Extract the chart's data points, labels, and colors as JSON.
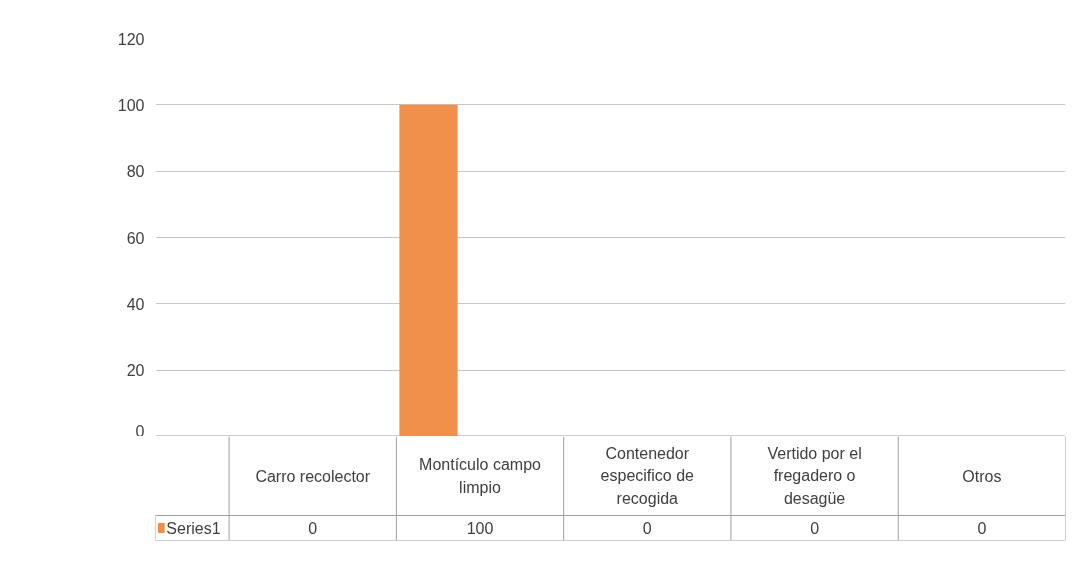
{
  "chart_data": {
    "type": "bar",
    "categories": [
      "Carro recolector",
      "Montículo campo limpio",
      "Contenedor especifico de recogida",
      "Vertido por el fregadero o desagüe",
      "Otros"
    ],
    "series": [
      {
        "name": "Series1",
        "color": "#f0904a",
        "values": [
          0,
          100,
          0,
          0,
          0
        ]
      }
    ],
    "ylim": [
      0,
      120
    ],
    "yticks": [
      0,
      20,
      40,
      60,
      80,
      100,
      120
    ],
    "grid": "y",
    "legend": "bottom",
    "data_labels": true
  }
}
